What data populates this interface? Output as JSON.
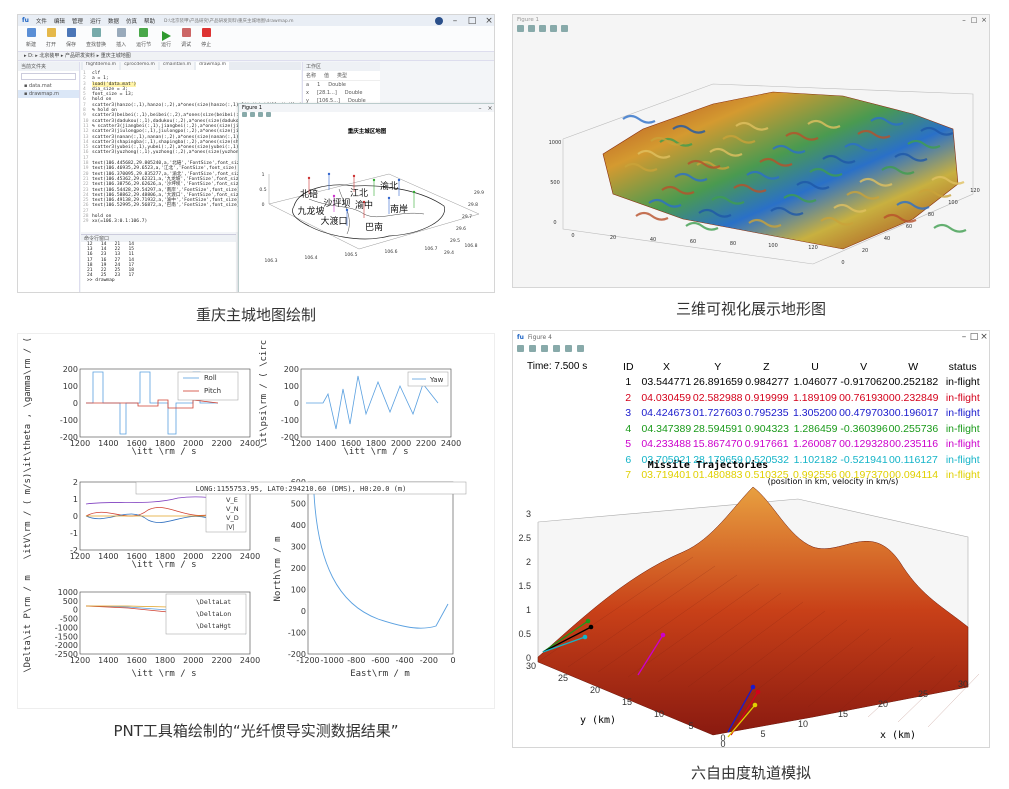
{
  "captions": {
    "tl": "重庆主城地图绘制",
    "tr": "三维可视化展示地形图",
    "bl": "PNT工具箱绘制的“光纤惯导实测数据结果”",
    "br": "六自由度轨道模拟"
  },
  "ide": {
    "menu": [
      "文件",
      "编辑",
      "管理",
      "运行",
      "数据",
      "仿真",
      "帮助"
    ],
    "title_path": "D:\\北京装甲\\产品研究\\产品研发资料\\重庆主城地图\\drawmap.m",
    "ribbon": [
      "新建",
      "打开",
      "保存",
      "查找替换",
      "插入",
      "运行节",
      "运行",
      "调试",
      "停止"
    ],
    "breadcrumb": "▸ D: ▸ 北京装甲 ▸ 产品研发资料 ▸ 重庆主城地图",
    "file_panel_title": "当前文件夹",
    "files": [
      "data.mat",
      "drawmap.m"
    ],
    "tabs": [
      "flightdemo.m",
      "cprocdemo.m",
      "cmaintain.m",
      "drawmap.m"
    ],
    "workspace_title": "工作区",
    "workspace_cols": [
      "名称",
      "值",
      "类型"
    ],
    "workspace_rows": [
      [
        "a",
        "1",
        "Double"
      ],
      [
        "x",
        "[28.1...]",
        "Double"
      ],
      [
        "y",
        "[106.5...]",
        "Double"
      ]
    ],
    "code_lines": [
      "clf",
      "a = 1;",
      "load('data.mat')",
      "dia_size = 3;",
      "font_size = 13;",
      "hold on",
      "scatter3(hanzo(:,1),hanzo(:,2),a*ones(size(hanzo(:,1),1)),'k','filled','MarkerEdgeColor','k')",
      "% hold on",
      "scatter3(beibei(:,1),beibei(:,2),a*ones(size(beibei(:,1),1)),'k','filled')",
      "scatter3(dadukou(:,1),dadukou(:,2),a*ones(size(dadukou(:,1),1)),'k')",
      "% scatter3(jiangbei(:,1),jiangbei(:,2),a*ones(size(jiangbei(:,1),1)))",
      "scatter3(jiulongpo(:,1),jiulongpo(:,2),a*ones(size(jiulongpo(:,1),1)))",
      "scatter3(nanan(:,1),nanan(:,2),a*ones(size(nanan(:,1),1)),'k','.')",
      "scatter3(shapingba(:,1),shapingba(:,2),a*ones(size(shapingba(:,1),1)))",
      "scatter3(yubei(:,1),yubei(:,2),a*ones(size(yubei(:,1),1)),'k','.')",
      "scatter3(yuzhong(:,1),yuzhong(:,2),a*ones(size(yuzhong(:,1),1)),'k')",
      "",
      "text(106.445682,29.805240,a,'北碚','FontSize',font_size)",
      "text(106.46935,29.6523,a,'江北','FontSize',font_size)",
      "text(106.370095,29.835277,a,'渝北','FontSize',font_size)",
      "text(106.45362,29.62321,a,'九龙坡','FontSize',font_size)",
      "text(106.38756,29.62626,a,'沙坪坝','FontSize',font_size)",
      "text(106.54428,29.54297,a,'南岸','FontSize',font_size)",
      "text(106.58862,29.48806,a,'大渡口','FontSize',font_size)",
      "text(106.49138,29.71932,a,'渝中','FontSize',font_size)",
      "text(106.52995,29.56872,a,'巴南','FontSize',font_size)",
      "",
      "hold on",
      "xx(=106.3:0.1:106.7)"
    ],
    "cmd_title": "命令行窗口",
    "cmd_lines": [
      "12   14   21   14",
      "13   14   22   15",
      "16   23   13   11",
      "17   16   27   14",
      "18   19   24   17",
      "21   22   25   18",
      "24   25   23   17",
      "",
      ">> drawmap"
    ]
  },
  "map_figure": {
    "title_bar": "Figure 1",
    "plot_title": "重庆主城区地图",
    "district_labels": [
      "北碚",
      "渝北",
      "江北",
      "沙坪坝",
      "九龙坡",
      "渝中",
      "南岸",
      "大渡口",
      "巴南"
    ],
    "x_ticks": [
      "106.3",
      "106.4",
      "106.5",
      "106.6",
      "106.7",
      "106.8"
    ],
    "y_ticks": [
      "29.4",
      "29.5",
      "29.6",
      "29.7",
      "29.8",
      "29.9"
    ],
    "z_ticks": [
      "0",
      "0.5",
      "1"
    ]
  },
  "terrain_figure": {
    "title_bar": "Figure 1",
    "x_ticks": [
      "0",
      "20",
      "40",
      "60",
      "80",
      "100",
      "120"
    ],
    "y_ticks": [
      "0",
      "20",
      "40",
      "60",
      "80",
      "100",
      "120"
    ],
    "z_ticks": [
      "0",
      "500",
      "1000"
    ]
  },
  "pnt": {
    "att_legend": [
      "Roll",
      "Pitch"
    ],
    "att_ylabel": "\\it\\theta , \\gamma\\rm / ( \\ci",
    "att_xlabel": "\\itt \\rm / s",
    "att_yticks": [
      "200",
      "100",
      "0",
      "-100",
      "-200"
    ],
    "yaw_legend": [
      "Yaw"
    ],
    "yaw_ylabel": "\\it\\psi\\rm / ( \\circ",
    "yaw_xlabel": "\\itt \\rm / s",
    "yaw_yticks": [
      "200",
      "100",
      "0",
      "-100",
      "-200"
    ],
    "x_ticks": [
      "1200",
      "1400",
      "1600",
      "1800",
      "2000",
      "2200",
      "2400"
    ],
    "vel_legend": [
      "V_E",
      "V_N",
      "V_D",
      "|V|"
    ],
    "vel_ylabel": "\\itV\\rm / ( m/s)",
    "vel_xlabel": "\\itt \\rm / s",
    "vel_yticks": [
      "2",
      "1",
      "0",
      "-1",
      "-2"
    ],
    "pos_legend": [
      "\\DeltaLat",
      "\\DeltaLon",
      "\\DeltaHgt"
    ],
    "pos_ylabel": "\\Delta\\it P\\rm / m",
    "pos_xlabel": "\\itt \\rm / s",
    "pos_yticks": [
      "1000",
      "500",
      "0",
      "-500",
      "-1000",
      "-1500",
      "-2000",
      "-2500"
    ],
    "track_banner": "LONG:1155753.95, LAT0:294210.60 (DMS), H0:20.0 (m)",
    "track_ylabel": "North\\rm / m",
    "track_xlabel": "East\\rm / m",
    "track_yticks": [
      "600",
      "500",
      "400",
      "300",
      "200",
      "100",
      "0",
      "-100",
      "-200"
    ],
    "track_xticks": [
      "-1200",
      "-1000",
      "-800",
      "-600",
      "-400",
      "-200",
      "0"
    ]
  },
  "missile": {
    "title_bar": "Figure 4",
    "time_label": "Time: 7.500 s",
    "table_headers": [
      "ID",
      "X",
      "Y",
      "Z",
      "U",
      "V",
      "W",
      "status"
    ],
    "table_rows": [
      [
        "1",
        "03.544771",
        "26.891659",
        "0.984277",
        "1.046077",
        "-0.917062",
        "00.252182",
        "in-flight"
      ],
      [
        "2",
        "04.030459",
        "02.582988",
        "0.919999",
        "1.189109",
        "00.761930",
        "00.232849",
        "in-flight"
      ],
      [
        "3",
        "04.424673",
        "01.727603",
        "0.795235",
        "1.305200",
        "00.479703",
        "00.196017",
        "in-flight"
      ],
      [
        "4",
        "04.347389",
        "28.594591",
        "0.904323",
        "1.286459",
        "-0.360396",
        "00.255736",
        "in-flight"
      ],
      [
        "5",
        "04.233488",
        "15.867470",
        "0.917661",
        "1.260087",
        "00.129328",
        "00.235116",
        "in-flight"
      ],
      [
        "6",
        "03.705921",
        "28.179659",
        "0.520532",
        "1.102182",
        "-0.521941",
        "00.116127",
        "in-flight"
      ],
      [
        "7",
        "03.719401",
        "01.480883",
        "0.510325",
        "0.992556",
        "00.197370",
        "00.094114",
        "in-flight"
      ]
    ],
    "row_colors": [
      "#000000",
      "#d4001a",
      "#1a1acc",
      "#1a9a1a",
      "#cc00cc",
      "#14b4c8",
      "#e0d000"
    ],
    "plot_title": "Missile Trajectories",
    "plot_subtitle": "(position in km, velocity in km/s)",
    "xlabel": "x (km)",
    "ylabel": "y (km)",
    "x_ticks": [
      "0",
      "5",
      "10",
      "15",
      "20",
      "25",
      "30"
    ],
    "y_ticks": [
      "0",
      "5",
      "10",
      "15",
      "20",
      "25",
      "30"
    ],
    "z_ticks": [
      "0",
      "0.5",
      "1",
      "1.5",
      "2",
      "2.5",
      "3"
    ]
  }
}
